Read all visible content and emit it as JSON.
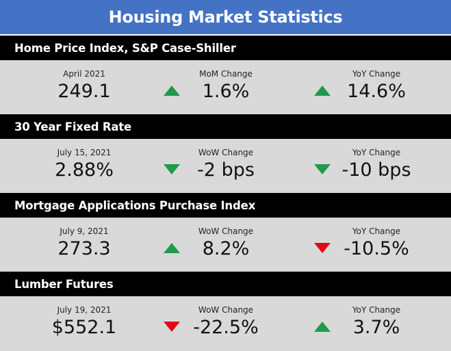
{
  "title": "Housing Market Statistics",
  "sections": [
    {
      "header": "Home Price Index, S&P Case-Shiller",
      "stats": [
        {
          "label": "April 2021",
          "value": "249.1"
        },
        {
          "label": "MoM Change",
          "value": "1.6%",
          "direction": "up",
          "color": "#1f9a4a",
          "icon": "triangle-up-icon"
        },
        {
          "label": "YoY Change",
          "value": "14.6%",
          "direction": "up",
          "color": "#1f9a4a",
          "icon": "triangle-up-icon"
        }
      ]
    },
    {
      "header": "30 Year Fixed Rate",
      "stats": [
        {
          "label": "July 15, 2021",
          "value": "2.88%"
        },
        {
          "label": "WoW Change",
          "value": "-2 bps",
          "direction": "down",
          "color": "#1f9a4a",
          "icon": "triangle-down-icon"
        },
        {
          "label": "YoY Change",
          "value": "-10 bps",
          "direction": "down",
          "color": "#1f9a4a",
          "icon": "triangle-down-icon"
        }
      ]
    },
    {
      "header": "Mortgage Applications Purchase Index",
      "stats": [
        {
          "label": "July 9, 2021",
          "value": "273.3"
        },
        {
          "label": "WoW Change",
          "value": "8.2%",
          "direction": "up",
          "color": "#1f9a4a",
          "icon": "triangle-up-icon"
        },
        {
          "label": "YoY Change",
          "value": "-10.5%",
          "direction": "down",
          "color": "#e30613",
          "icon": "triangle-down-icon"
        }
      ]
    },
    {
      "header": "Lumber Futures",
      "stats": [
        {
          "label": "July 19, 2021",
          "value": "$552.1"
        },
        {
          "label": "WoW Change",
          "value": "-22.5%",
          "direction": "down",
          "color": "#e30613",
          "icon": "triangle-down-icon"
        },
        {
          "label": "YoY Change",
          "value": "3.7%",
          "direction": "up",
          "color": "#1f9a4a",
          "icon": "triangle-up-icon"
        }
      ]
    }
  ],
  "colors": {
    "banner": "#4472c4",
    "header": "#000000",
    "panel": "#d9d9d9",
    "up": "#1f9a4a",
    "down_bad": "#e30613"
  }
}
